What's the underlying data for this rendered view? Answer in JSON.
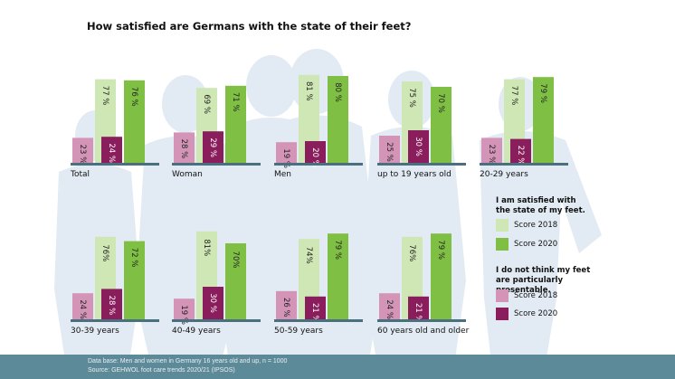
{
  "title": "How satisfied are Germans with the state of their feet?",
  "chart_data": {
    "type": "bar",
    "title": "How satisfied are Germans with the state of their feet?",
    "ylim": [
      0,
      85
    ],
    "categories": [
      "Total",
      "Woman",
      "Men",
      "up to 19 years old",
      "20-29 years",
      "30-39 years",
      "40-49 years",
      "50-59 years",
      "60 years old and older"
    ],
    "series": [
      {
        "name": "I am satisfied with the state of my feet. – Score 2018",
        "color": "#cfe6b5",
        "values": [
          77,
          69,
          81,
          75,
          77,
          76,
          81,
          74,
          76
        ],
        "labels": [
          "77 %",
          "69 %",
          "81 %",
          "75 %",
          "77 %",
          "76%",
          "81%",
          "74%",
          "76%"
        ]
      },
      {
        "name": "I am satisfied with the state of my feet. – Score 2020",
        "color": "#7fbf44",
        "values": [
          76,
          71,
          80,
          70,
          79,
          72,
          70,
          79,
          79
        ],
        "labels": [
          "76 %",
          "71 %",
          "80 %",
          "70 %",
          "79 %",
          "72 %",
          "70%",
          "79 %",
          "79 %"
        ]
      },
      {
        "name": "I do not think my feet are particularly presentable. – Score 2018",
        "color": "#d394b8",
        "values": [
          23,
          28,
          19,
          25,
          23,
          24,
          19,
          26,
          24
        ],
        "labels": [
          "23 %",
          "28 %",
          "19 %",
          "25 %",
          "23 %",
          "24 %",
          "19 %",
          "26 %",
          "24 %"
        ]
      },
      {
        "name": "I do not think my feet are particularly presentable. – Score 2020",
        "color": "#8a1d5c",
        "values": [
          24,
          29,
          20,
          30,
          22,
          28,
          30,
          21,
          21
        ],
        "labels": [
          "24 %",
          "29 %",
          "20 %",
          "30 %",
          "22 %",
          "28 %",
          "30 %",
          "21 %",
          "21 %"
        ]
      }
    ]
  },
  "legend": {
    "satisfied_heading": "I am satisfied with the state of my feet.",
    "not_presentable_heading": "I do not think my feet are particularly presentable.",
    "items": [
      {
        "label": "Score 2018",
        "color": "#cfe6b5"
      },
      {
        "label": "Score 2020",
        "color": "#7fbf44"
      },
      {
        "label": "Score 2018",
        "color": "#d394b8"
      },
      {
        "label": "Score 2020",
        "color": "#8a1d5c"
      }
    ]
  },
  "footer": {
    "line1": "Data base: Men and women in Germany 16 years old and up, n = 1000",
    "line2": "Source: GEHWOL foot care trends 2020/21 (IPSOS)"
  },
  "colors": {
    "axis": "#4a7080",
    "silhouette": "#dfe9f2",
    "footer_bg": "#5d8a98"
  }
}
